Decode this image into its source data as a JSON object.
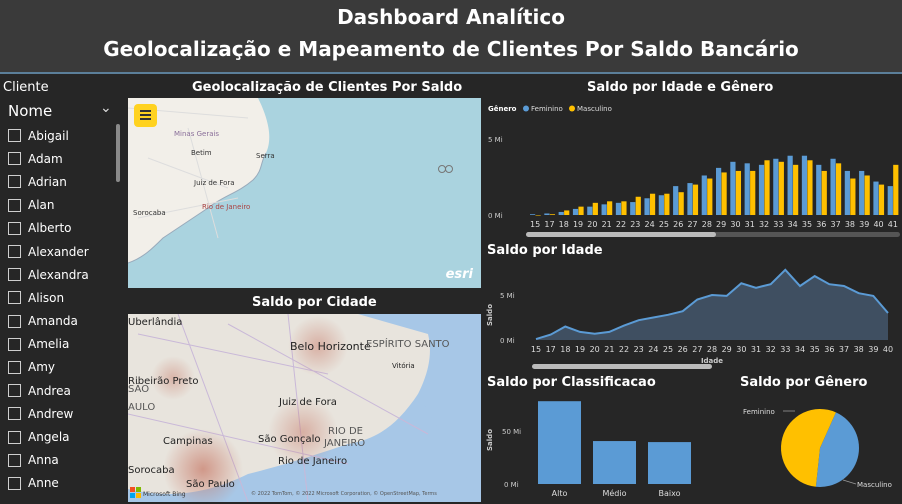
{
  "header": {
    "title_line1": "Dashboard Analítico",
    "title_line2": "Geolocalização e Mapeamento de Clientes Por Saldo Bancário"
  },
  "slicer": {
    "title": "Cliente",
    "field": "Nome",
    "items": [
      "Abigail",
      "Adam",
      "Adrian",
      "Alan",
      "Alberto",
      "Alexander",
      "Alexandra",
      "Alison",
      "Amanda",
      "Amelia",
      "Amy",
      "Andrea",
      "Andrew",
      "Angela",
      "Anna",
      "Anne"
    ]
  },
  "geo_map": {
    "title": "Geolocalização de Clientes Por Saldo",
    "labels": [
      "Minas Gerais",
      "Betim",
      "Serra",
      "Juiz de Fora",
      "Rio de Janeiro",
      "Sorocaba"
    ],
    "logo": "esri",
    "menu_icon": "hamburger-icon"
  },
  "city_map": {
    "title": "Saldo por Cidade",
    "labels": [
      "Uberlândia",
      "Belo Horizonte",
      "ESPÍRITO SANTO",
      "Vitória",
      "Ribeirão Preto",
      "Juiz de Fora",
      "RIO DE",
      "JANEIRO",
      "Campinas",
      "São Gonçalo",
      "Rio de Janeiro",
      "Sorocaba",
      "São Paulo",
      "SÃO",
      "AULO"
    ],
    "attribution": "© 2022 TomTom, © 2022 Microsoft Corporation, © OpenStreetMap, Terms",
    "logo": "Microsoft Bing"
  },
  "chart_data": [
    {
      "type": "bar",
      "title": "Saldo por Idade e Gênero",
      "legend_title": "Gênero",
      "legend_position": "top-left",
      "categories": [
        "15",
        "17",
        "18",
        "19",
        "20",
        "21",
        "22",
        "23",
        "24",
        "25",
        "26",
        "27",
        "28",
        "29",
        "30",
        "31",
        "32",
        "33",
        "34",
        "35",
        "36",
        "37",
        "38",
        "39",
        "40",
        "41"
      ],
      "series": [
        {
          "name": "Feminino",
          "color": "#5b9bd5",
          "values": [
            0.05,
            0.1,
            0.2,
            0.4,
            0.55,
            0.7,
            0.8,
            0.85,
            1.1,
            1.3,
            1.9,
            2.1,
            2.6,
            3.1,
            3.5,
            3.4,
            3.3,
            3.7,
            3.9,
            3.9,
            3.3,
            3.7,
            2.9,
            2.9,
            2.2,
            1.9
          ]
        },
        {
          "name": "Masculino",
          "color": "#ffc000",
          "values": [
            0.0,
            0.05,
            0.3,
            0.55,
            0.8,
            0.9,
            0.9,
            1.2,
            1.4,
            1.4,
            1.5,
            2.0,
            2.4,
            2.8,
            2.9,
            2.9,
            3.6,
            3.5,
            3.3,
            3.6,
            2.9,
            3.4,
            2.4,
            2.6,
            2.0,
            3.3
          ]
        }
      ],
      "y_ticks": [
        "0 Mi",
        "5 Mi"
      ],
      "ylim": [
        0,
        5
      ]
    },
    {
      "type": "area",
      "title": "Saldo por Idade",
      "xlabel": "Idade",
      "ylabel": "Saldo",
      "x": [
        "15",
        "17",
        "18",
        "19",
        "20",
        "21",
        "22",
        "23",
        "24",
        "25",
        "26",
        "27",
        "28",
        "29",
        "30",
        "31",
        "32",
        "33",
        "34",
        "35",
        "36",
        "37",
        "38",
        "39",
        "40"
      ],
      "values": [
        0.1,
        0.6,
        1.5,
        0.9,
        0.7,
        0.9,
        1.6,
        2.2,
        2.5,
        2.8,
        3.2,
        4.5,
        5.0,
        4.9,
        6.3,
        5.8,
        6.2,
        7.8,
        6.0,
        7.1,
        6.2,
        6.0,
        5.2,
        4.9,
        3.0
      ],
      "y_ticks": [
        "0 Mi",
        "5 Mi"
      ],
      "ylim": [
        0,
        8
      ],
      "color": "#5b9bd5"
    },
    {
      "type": "bar",
      "title": "Saldo por Classificacao",
      "ylabel": "Saldo",
      "categories": [
        "Alto",
        "Médio",
        "Baixo"
      ],
      "values": [
        81,
        42,
        41
      ],
      "y_ticks": [
        "0 Mi",
        "50 Mi"
      ],
      "ylim": [
        0,
        90
      ],
      "color": "#5b9bd5"
    },
    {
      "type": "pie",
      "title": "Saldo por Gênero",
      "labels": [
        "Feminino",
        "Masculino"
      ],
      "values": [
        45,
        55
      ],
      "colors": [
        "#5b9bd5",
        "#ffc000"
      ]
    }
  ]
}
